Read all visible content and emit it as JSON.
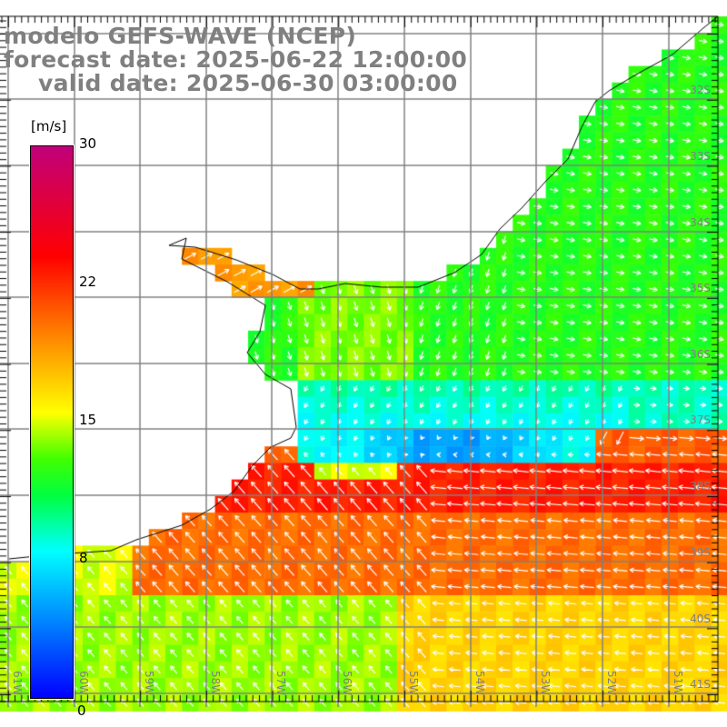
{
  "title": {
    "model": "modelo GEFS-WAVE (NCEP)",
    "forecast": "forecast date: 2025-06-22 12:00:00",
    "valid": "valid date: 2025-06-30 03:00:00"
  },
  "colorbar": {
    "unit": "[m/s]",
    "range": [
      0,
      30
    ],
    "ticks": [
      "30",
      "22",
      "15",
      "8",
      "0"
    ],
    "tick_values": [
      30,
      22,
      15,
      8,
      0
    ]
  },
  "axes": {
    "lon_labels": [
      "61W",
      "60W",
      "59W",
      "58W",
      "57W",
      "56W",
      "55W",
      "54W",
      "53W",
      "52W",
      "51W"
    ],
    "lat_labels": [
      "32S",
      "33S",
      "34S",
      "35S",
      "36S",
      "37S",
      "38S",
      "39S",
      "40S",
      "41S"
    ]
  },
  "colors": {
    "grid": "#808080",
    "coast": "#000000",
    "arrow": "#ffffff",
    "text": "#808080"
  }
}
